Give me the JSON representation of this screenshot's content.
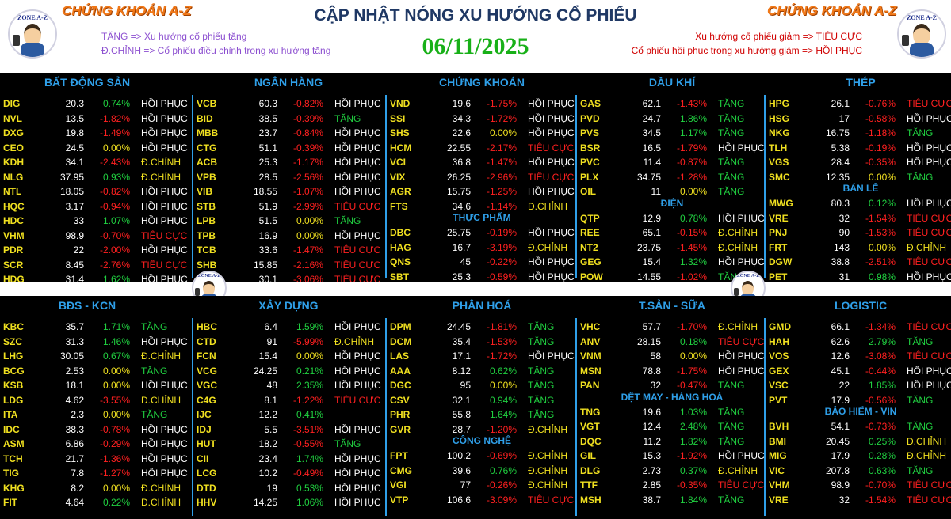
{
  "header": {
    "title": "CẬP NHẬT NÓNG XU HƯỚNG CỔ PHIẾU",
    "date": "06/11/2025",
    "brand_left": "CHỨNG KHOÁN A-Z",
    "brand_right": "CHỨNG KHOÁN A-Z",
    "logo_text": "ZONE A-Z",
    "legend_left": [
      "TĂNG => Xu hướng cổ phiếu tăng",
      "Đ.CHỈNH => Cổ phiếu điều chỉnh trong xu hướng tăng"
    ],
    "legend_right": [
      "Xu hướng cổ phiếu giảm => TIÊU CỰC",
      "Cổ phiếu hồi phục trong xu hướng giảm => HỒI PHỤC"
    ]
  },
  "colors": {
    "up": "#20d040",
    "down": "#ff2020",
    "flat": "#f0e020",
    "section": "#2f9fe8",
    "ticker": "#f0e020"
  },
  "sections": [
    {
      "panel": "top",
      "col": 0,
      "name": "BẤT ĐỘNG SẢN",
      "start": 0,
      "rows": [
        [
          "DIG",
          "20.3",
          "0.74%",
          "HỒI PHỤC"
        ],
        [
          "NVL",
          "13.5",
          "-1.82%",
          "HỒI PHỤC"
        ],
        [
          "DXG",
          "19.8",
          "-1.49%",
          "HỒI PHỤC"
        ],
        [
          "CEO",
          "24.5",
          "0.00%",
          "HỒI PHỤC"
        ],
        [
          "KDH",
          "34.1",
          "-2.43%",
          "Đ.CHỈNH"
        ],
        [
          "NLG",
          "37.95",
          "0.93%",
          "Đ.CHỈNH"
        ],
        [
          "NTL",
          "18.05",
          "-0.82%",
          "HỒI PHỤC"
        ],
        [
          "HQC",
          "3.17",
          "-0.94%",
          "HỒI PHỤC"
        ],
        [
          "HDC",
          "33",
          "1.07%",
          "HỒI PHỤC"
        ],
        [
          "VHM",
          "98.9",
          "-0.70%",
          "TIÊU CỰC"
        ],
        [
          "PDR",
          "22",
          "-2.00%",
          "HỒI PHỤC"
        ],
        [
          "SCR",
          "8.45",
          "-2.76%",
          "TIÊU CỰC"
        ],
        [
          "HDG",
          "31.4",
          "1.62%",
          "HỒI PHỤC"
        ]
      ]
    },
    {
      "panel": "top",
      "col": 1,
      "name": "NGÂN HÀNG",
      "start": 0,
      "rows": [
        [
          "VCB",
          "60.3",
          "-0.82%",
          "HỒI PHỤC"
        ],
        [
          "BID",
          "38.5",
          "-0.39%",
          "TĂNG"
        ],
        [
          "MBB",
          "23.7",
          "-0.84%",
          "HỒI PHỤC"
        ],
        [
          "CTG",
          "51.1",
          "-0.39%",
          "HỒI PHỤC"
        ],
        [
          "ACB",
          "25.3",
          "-1.17%",
          "HỒI PHỤC"
        ],
        [
          "VPB",
          "28.5",
          "-2.56%",
          "HỒI PHỤC"
        ],
        [
          "VIB",
          "18.55",
          "-1.07%",
          "HỒI PHỤC"
        ],
        [
          "STB",
          "51.9",
          "-2.99%",
          "TIÊU CỰC"
        ],
        [
          "LPB",
          "51.5",
          "0.00%",
          "TĂNG"
        ],
        [
          "TPB",
          "16.9",
          "0.00%",
          "HỒI PHỤC"
        ],
        [
          "TCB",
          "33.6",
          "-1.47%",
          "TIÊU CỰC"
        ],
        [
          "SHB",
          "15.85",
          "-2.16%",
          "TIÊU CỰC"
        ],
        [
          "HDB",
          "30.1",
          "-3.06%",
          "TIÊU CỰC"
        ]
      ]
    },
    {
      "panel": "top",
      "col": 2,
      "name": "CHỨNG KHOÁN",
      "start": 0,
      "rows": [
        [
          "VND",
          "19.6",
          "-1.75%",
          "HỒI PHỤC"
        ],
        [
          "SSI",
          "34.3",
          "-1.72%",
          "HỒI PHỤC"
        ],
        [
          "SHS",
          "22.6",
          "0.00%",
          "HỒI PHỤC"
        ],
        [
          "HCM",
          "22.55",
          "-2.17%",
          "TIÊU CỰC"
        ],
        [
          "VCI",
          "36.8",
          "-1.47%",
          "HỒI PHỤC"
        ],
        [
          "VIX",
          "26.25",
          "-2.96%",
          "TIÊU CỰC"
        ],
        [
          "AGR",
          "15.75",
          "-1.25%",
          "HỒI PHỤC"
        ],
        [
          "FTS",
          "34.6",
          "-1.14%",
          "Đ.CHỈNH"
        ]
      ]
    },
    {
      "panel": "top",
      "col": 2,
      "name": "THỰC PHẨM",
      "sub": true,
      "start": 8.6,
      "rows": [
        [
          "DBC",
          "25.75",
          "-0.19%",
          "HỒI PHỤC"
        ],
        [
          "HAG",
          "16.7",
          "-3.19%",
          "Đ.CHỈNH"
        ],
        [
          "QNS",
          "45",
          "-0.22%",
          "HỒI PHỤC"
        ],
        [
          "SBT",
          "25.3",
          "-0.59%",
          "HỒI PHỤC"
        ]
      ]
    },
    {
      "panel": "top",
      "col": 3,
      "name": "DẦU KHÍ",
      "start": 0,
      "rows": [
        [
          "GAS",
          "62.1",
          "-1.43%",
          "TĂNG"
        ],
        [
          "PVD",
          "24.7",
          "1.86%",
          "TĂNG"
        ],
        [
          "PVS",
          "34.5",
          "1.17%",
          "TĂNG"
        ],
        [
          "BSR",
          "16.5",
          "-1.79%",
          "HỒI PHỤC"
        ],
        [
          "PVC",
          "11.4",
          "-0.87%",
          "TĂNG"
        ],
        [
          "PLX",
          "34.75",
          "-1.28%",
          "TĂNG"
        ],
        [
          "OIL",
          "11",
          "0.00%",
          "TĂNG"
        ]
      ]
    },
    {
      "panel": "top",
      "col": 3,
      "name": "ĐIỆN",
      "sub": true,
      "start": 7.6,
      "rows": [
        [
          "QTP",
          "12.9",
          "0.78%",
          "HỒI PHỤC"
        ],
        [
          "REE",
          "65.1",
          "-0.15%",
          "Đ.CHỈNH"
        ],
        [
          "NT2",
          "23.75",
          "-1.45%",
          "Đ.CHỈNH"
        ],
        [
          "GEG",
          "15.4",
          "1.32%",
          "HỒI PHỤC"
        ],
        [
          "POW",
          "14.55",
          "-1.02%",
          "TĂNG"
        ]
      ]
    },
    {
      "panel": "top",
      "col": 4,
      "name": "THÉP",
      "start": 0,
      "rows": [
        [
          "HPG",
          "26.1",
          "-0.76%",
          "TIÊU CỰC"
        ],
        [
          "HSG",
          "17",
          "-0.58%",
          "HỒI PHỤC"
        ],
        [
          "NKG",
          "16.75",
          "-1.18%",
          "TĂNG"
        ],
        [
          "TLH",
          "5.38",
          "-0.19%",
          "HỒI PHỤC"
        ],
        [
          "VGS",
          "28.4",
          "-0.35%",
          "HỒI PHỤC"
        ],
        [
          "SMC",
          "12.35",
          "0.00%",
          "TĂNG"
        ]
      ]
    },
    {
      "panel": "top",
      "col": 4,
      "name": "BÁN LẺ",
      "sub": true,
      "start": 6.6,
      "rows": [
        [
          "MWG",
          "80.3",
          "0.12%",
          "HỒI PHỤC"
        ],
        [
          "VRE",
          "32",
          "-1.54%",
          "TIÊU CỰC"
        ],
        [
          "PNJ",
          "90",
          "-1.53%",
          "TIÊU CỰC"
        ],
        [
          "FRT",
          "143",
          "0.00%",
          "Đ.CHỈNH"
        ],
        [
          "DGW",
          "38.8",
          "-2.51%",
          "TIÊU CỰC"
        ],
        [
          "PET",
          "31",
          "0.98%",
          "HỒI PHỤC"
        ]
      ]
    },
    {
      "panel": "bottom",
      "col": 0,
      "name": "BĐS - KCN",
      "start": 0,
      "rows": [
        [
          "KBC",
          "35.7",
          "1.71%",
          "TĂNG"
        ],
        [
          "SZC",
          "31.3",
          "1.46%",
          "HỒI PHỤC"
        ],
        [
          "LHG",
          "30.05",
          "0.67%",
          "Đ.CHỈNH"
        ],
        [
          "BCG",
          "2.53",
          "0.00%",
          "TĂNG"
        ],
        [
          "KSB",
          "18.1",
          "0.00%",
          "HỒI PHỤC"
        ],
        [
          "LDG",
          "4.62",
          "-3.55%",
          "Đ.CHỈNH"
        ],
        [
          "ITA",
          "2.3",
          "0.00%",
          "TĂNG"
        ],
        [
          "IDC",
          "38.3",
          "-0.78%",
          "HỒI PHỤC"
        ],
        [
          "ASM",
          "6.86",
          "-0.29%",
          "HỒI PHỤC"
        ],
        [
          "TCH",
          "21.7",
          "-1.36%",
          "HỒI PHỤC"
        ],
        [
          "TIG",
          "7.8",
          "-1.27%",
          "HỒI PHỤC"
        ],
        [
          "KHG",
          "8.2",
          "0.00%",
          "Đ.CHỈNH"
        ],
        [
          "FIT",
          "4.64",
          "0.22%",
          "Đ.CHỈNH"
        ]
      ]
    },
    {
      "panel": "bottom",
      "col": 1,
      "name": "XÂY DỰNG",
      "start": 0,
      "rows": [
        [
          "HBC",
          "6.4",
          "1.59%",
          "HỒI PHỤC"
        ],
        [
          "CTD",
          "91",
          "-5.99%",
          "Đ.CHỈNH"
        ],
        [
          "FCN",
          "15.4",
          "0.00%",
          "HỒI PHỤC"
        ],
        [
          "VCG",
          "24.25",
          "0.21%",
          "HỒI PHỤC"
        ],
        [
          "VGC",
          "48",
          "2.35%",
          "HỒI PHỤC"
        ],
        [
          "C4G",
          "8.1",
          "-1.22%",
          "TIÊU CỰC"
        ],
        [
          "IJC",
          "12.2",
          "0.41%",
          ""
        ],
        [
          "IDJ",
          "5.5",
          "-3.51%",
          "HỒI PHỤC"
        ],
        [
          "HUT",
          "18.2",
          "-0.55%",
          "TĂNG"
        ],
        [
          "CII",
          "23.4",
          "1.74%",
          "HỒI PHỤC"
        ],
        [
          "LCG",
          "10.2",
          "-0.49%",
          "HỒI PHỤC"
        ],
        [
          "DTD",
          "19",
          "0.53%",
          "HỒI PHỤC"
        ],
        [
          "HHV",
          "14.25",
          "1.06%",
          "HỒI PHỤC"
        ]
      ]
    },
    {
      "panel": "bottom",
      "col": 2,
      "name": "PHÂN HOÁ",
      "start": 0,
      "rows": [
        [
          "DPM",
          "24.45",
          "-1.81%",
          "TĂNG"
        ],
        [
          "DCM",
          "35.4",
          "-1.53%",
          "TĂNG"
        ],
        [
          "LAS",
          "17.1",
          "-1.72%",
          "HỒI PHỤC"
        ],
        [
          "AAA",
          "8.12",
          "0.62%",
          "TĂNG"
        ],
        [
          "DGC",
          "95",
          "0.00%",
          "TĂNG"
        ],
        [
          "CSV",
          "32.1",
          "0.94%",
          "TĂNG"
        ],
        [
          "PHR",
          "55.8",
          "1.64%",
          "TĂNG"
        ],
        [
          "GVR",
          "28.7",
          "-1.20%",
          "Đ.CHỈNH"
        ]
      ]
    },
    {
      "panel": "bottom",
      "col": 2,
      "name": "CÔNG NGHỆ",
      "sub": true,
      "start": 8.6,
      "rows": [
        [
          "FPT",
          "100.2",
          "-0.69%",
          "Đ.CHỈNH"
        ],
        [
          "CMG",
          "39.6",
          "0.76%",
          "Đ.CHỈNH"
        ],
        [
          "VGI",
          "77",
          "-0.26%",
          "Đ.CHỈNH"
        ],
        [
          "VTP",
          "106.6",
          "-3.09%",
          "TIÊU CỰC"
        ]
      ]
    },
    {
      "panel": "bottom",
      "col": 3,
      "name": "T.SẢN - SỮA",
      "start": 0,
      "rows": [
        [
          "VHC",
          "57.7",
          "-1.70%",
          "Đ.CHỈNH"
        ],
        [
          "ANV",
          "28.15",
          "0.18%",
          "TIÊU CỰC"
        ],
        [
          "VNM",
          "58",
          "0.00%",
          "HỒI PHỤC"
        ],
        [
          "MSN",
          "78.8",
          "-1.75%",
          "HỒI PHỤC"
        ],
        [
          "PAN",
          "32",
          "-0.47%",
          "TĂNG"
        ]
      ]
    },
    {
      "panel": "bottom",
      "col": 3,
      "name": "DỆT MAY - HÀNG HOÁ",
      "sub": true,
      "start": 5.6,
      "rows": [
        [
          "TNG",
          "19.6",
          "1.03%",
          "TĂNG"
        ],
        [
          "VGT",
          "12.4",
          "2.48%",
          "TĂNG"
        ],
        [
          "DQC",
          "11.2",
          "1.82%",
          "TĂNG"
        ],
        [
          "GIL",
          "15.3",
          "-1.92%",
          "HỒI PHỤC"
        ],
        [
          "DLG",
          "2.73",
          "0.37%",
          "Đ.CHỈNH"
        ],
        [
          "TTF",
          "2.85",
          "-0.35%",
          "TIÊU CỰC"
        ],
        [
          "MSH",
          "38.7",
          "1.84%",
          "TĂNG"
        ]
      ]
    },
    {
      "panel": "bottom",
      "col": 4,
      "name": "LOGISTIC",
      "start": 0,
      "rows": [
        [
          "GMD",
          "66.1",
          "-1.34%",
          "TIÊU CỰC"
        ],
        [
          "HAH",
          "62.6",
          "2.79%",
          "TĂNG"
        ],
        [
          "VOS",
          "12.6",
          "-3.08%",
          "TIÊU CỰC"
        ],
        [
          "GEX",
          "45.1",
          "-0.44%",
          "HỒI PHỤC"
        ],
        [
          "VSC",
          "22",
          "1.85%",
          "HỒI PHỤC"
        ],
        [
          "PVT",
          "17.9",
          "-0.56%",
          "TĂNG"
        ]
      ]
    },
    {
      "panel": "bottom",
      "col": 4,
      "name": "BẢO HIỂM - VIN",
      "sub": true,
      "start": 6.6,
      "rows": [
        [
          "BVH",
          "54.1",
          "-0.73%",
          "TĂNG"
        ],
        [
          "BMI",
          "20.45",
          "0.25%",
          "Đ.CHỈNH"
        ],
        [
          "MIG",
          "17.9",
          "0.28%",
          "Đ.CHỈNH"
        ],
        [
          "VIC",
          "207.8",
          "0.63%",
          "TĂNG"
        ],
        [
          "VHM",
          "98.9",
          "-0.70%",
          "TIÊU CỰC"
        ],
        [
          "VRE",
          "32",
          "-1.54%",
          "TIÊU CỰC"
        ]
      ]
    }
  ]
}
